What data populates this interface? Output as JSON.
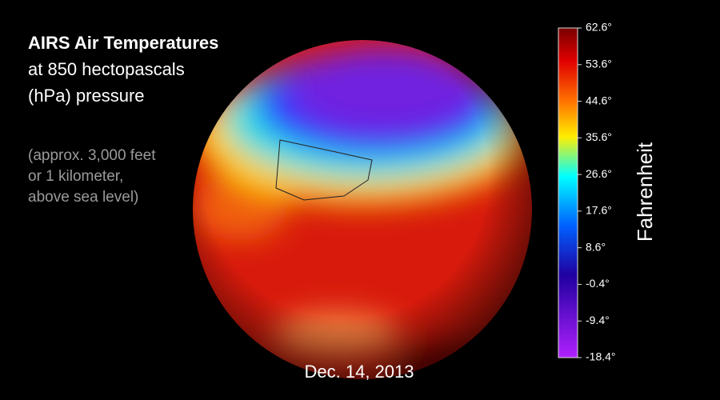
{
  "title": [
    "AIRS Air Temperatures",
    "at 850 hectopascals",
    "(hPa) pressure"
  ],
  "note": [
    "(approx. 3,000 feet",
    "or 1 kilometer,",
    "above sea level)"
  ],
  "date": "Dec. 14, 2013",
  "colorbar": {
    "label": "Fahrenheit",
    "lim": [
      -18.4,
      62.6
    ],
    "ticks": [
      {
        "value": 62.6,
        "label": "62.6°"
      },
      {
        "value": 53.6,
        "label": "53.6°"
      },
      {
        "value": 44.6,
        "label": "44.6°"
      },
      {
        "value": 35.6,
        "label": "35.6°"
      },
      {
        "value": 26.6,
        "label": "26.6°"
      },
      {
        "value": 17.6,
        "label": "17.6°"
      },
      {
        "value": 8.6,
        "label": "8.6°"
      },
      {
        "value": -0.4,
        "label": "-0.4°"
      },
      {
        "value": -9.4,
        "label": "-9.4°"
      },
      {
        "value": -18.4,
        "label": "-18.4°"
      }
    ]
  }
}
